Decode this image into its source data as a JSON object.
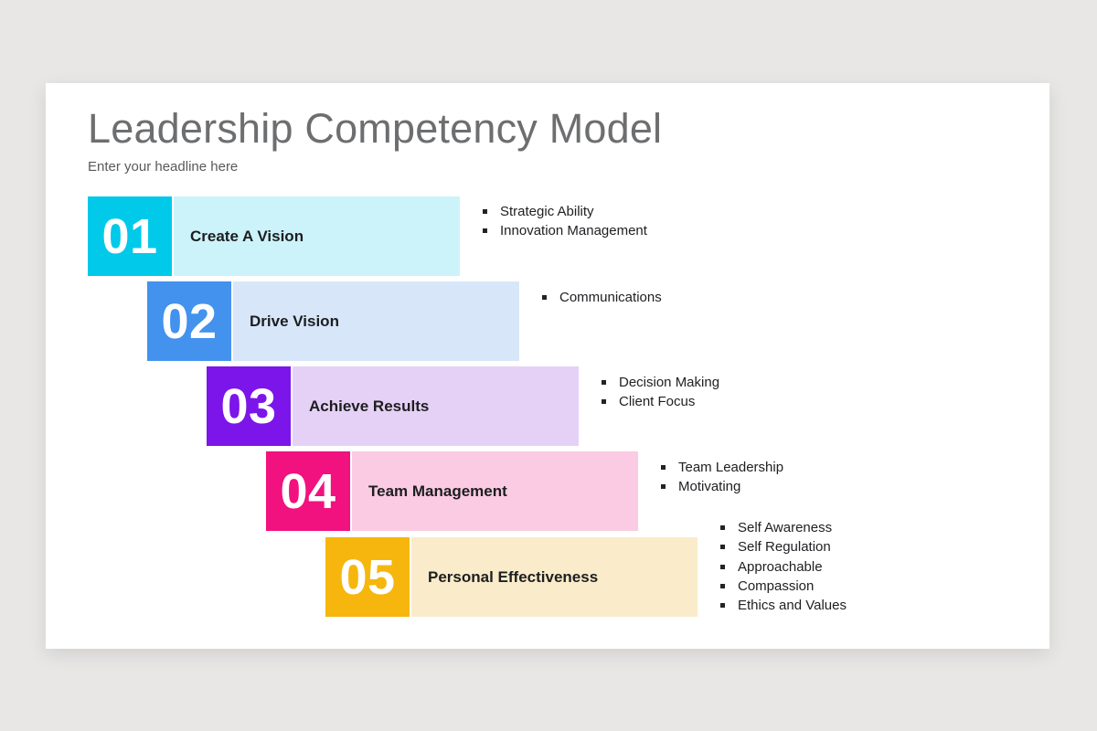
{
  "slide": {
    "title": "Leadership Competency Model",
    "subtitle": "Enter your headline here"
  },
  "steps": [
    {
      "number": "01",
      "label": "Create A Vision",
      "number_color": "#00c9ea",
      "bar_color": "#cdf3fa",
      "bullets": [
        "Strategic Ability",
        "Innovation Management"
      ]
    },
    {
      "number": "02",
      "label": "Drive Vision",
      "number_color": "#4292ee",
      "bar_color": "#d7e7f9",
      "bullets": [
        "Communications"
      ]
    },
    {
      "number": "03",
      "label": "Achieve Results",
      "number_color": "#7c15e9",
      "bar_color": "#e5d1f6",
      "bullets": [
        "Decision Making",
        "Client Focus"
      ]
    },
    {
      "number": "04",
      "label": "Team Management",
      "number_color": "#f1117f",
      "bar_color": "#fbcbe3",
      "bullets": [
        "Team Leadership",
        "Motivating"
      ]
    },
    {
      "number": "05",
      "label": "Personal Effectiveness",
      "number_color": "#f6b60d",
      "bar_color": "#faecca",
      "bullets": [
        "Self Awareness",
        "Self Regulation",
        "Approachable",
        "Compassion",
        "Ethics and Values"
      ]
    }
  ]
}
